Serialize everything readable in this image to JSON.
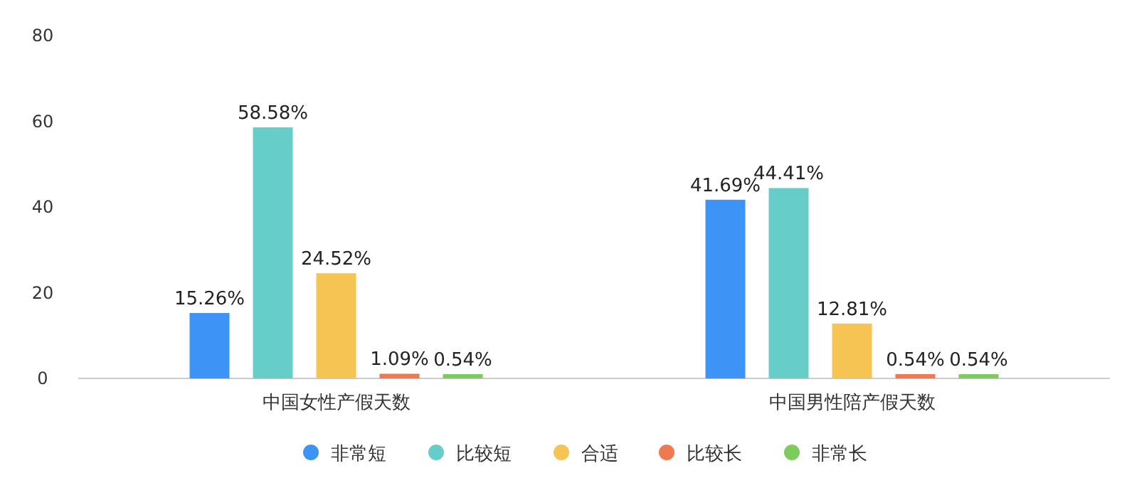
{
  "chart_data": {
    "type": "bar",
    "categories": [
      "中国女性产假天数",
      "中国男性陪产假天数"
    ],
    "series": [
      {
        "name": "非常短",
        "color": "#3d94f6",
        "values": [
          15.26,
          41.69
        ],
        "value_labels": [
          "15.26%",
          "41.69%"
        ]
      },
      {
        "name": "比较短",
        "color": "#66cdc9",
        "values": [
          58.58,
          44.41
        ],
        "value_labels": [
          "58.58%",
          "44.41%"
        ]
      },
      {
        "name": "合适",
        "color": "#f5c452",
        "values": [
          24.52,
          12.81
        ],
        "value_labels": [
          "24.52%",
          "12.81%"
        ]
      },
      {
        "name": "比较长",
        "color": "#ef7a4f",
        "values": [
          1.09,
          0.54
        ],
        "value_labels": [
          "1.09%",
          "0.54%"
        ]
      },
      {
        "name": "非常长",
        "color": "#7ccb5c",
        "values": [
          0.54,
          0.54
        ],
        "value_labels": [
          "0.54%",
          "0.54%"
        ]
      }
    ],
    "ylim": [
      0,
      80
    ],
    "yticks": [
      0,
      20,
      40,
      60,
      80
    ],
    "grid": false,
    "legend": "bottom"
  }
}
